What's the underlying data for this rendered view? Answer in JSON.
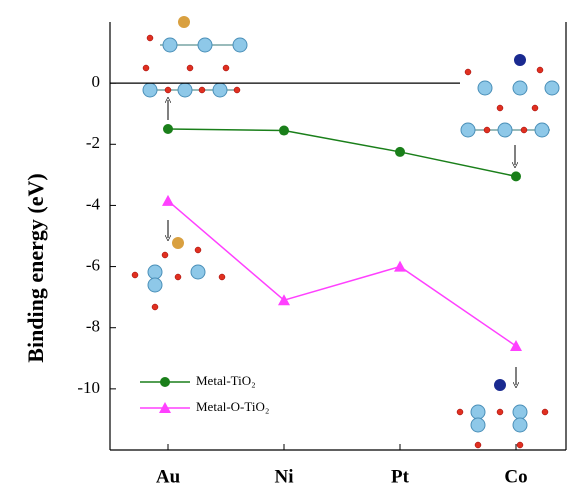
{
  "chart_data": {
    "type": "line",
    "y_label": "Binding energy (eV)",
    "categories": [
      "Au",
      "Ni",
      "Pt",
      "Co"
    ],
    "series": [
      {
        "name": "Metal-TiO₂",
        "color": "#1a7f1a",
        "marker": "circle",
        "values": [
          -1.5,
          -1.55,
          -2.25,
          -3.05
        ]
      },
      {
        "name": "Metal-O-TiO₂",
        "color": "#ff40ff",
        "marker": "triangle",
        "values": [
          -3.85,
          -7.1,
          -6.0,
          -8.6
        ]
      }
    ],
    "ylim": [
      -12,
      2
    ],
    "yticks": [
      0,
      -2,
      -4,
      -6,
      -8,
      -10
    ],
    "zero_line": true,
    "legend": "lower left"
  }
}
